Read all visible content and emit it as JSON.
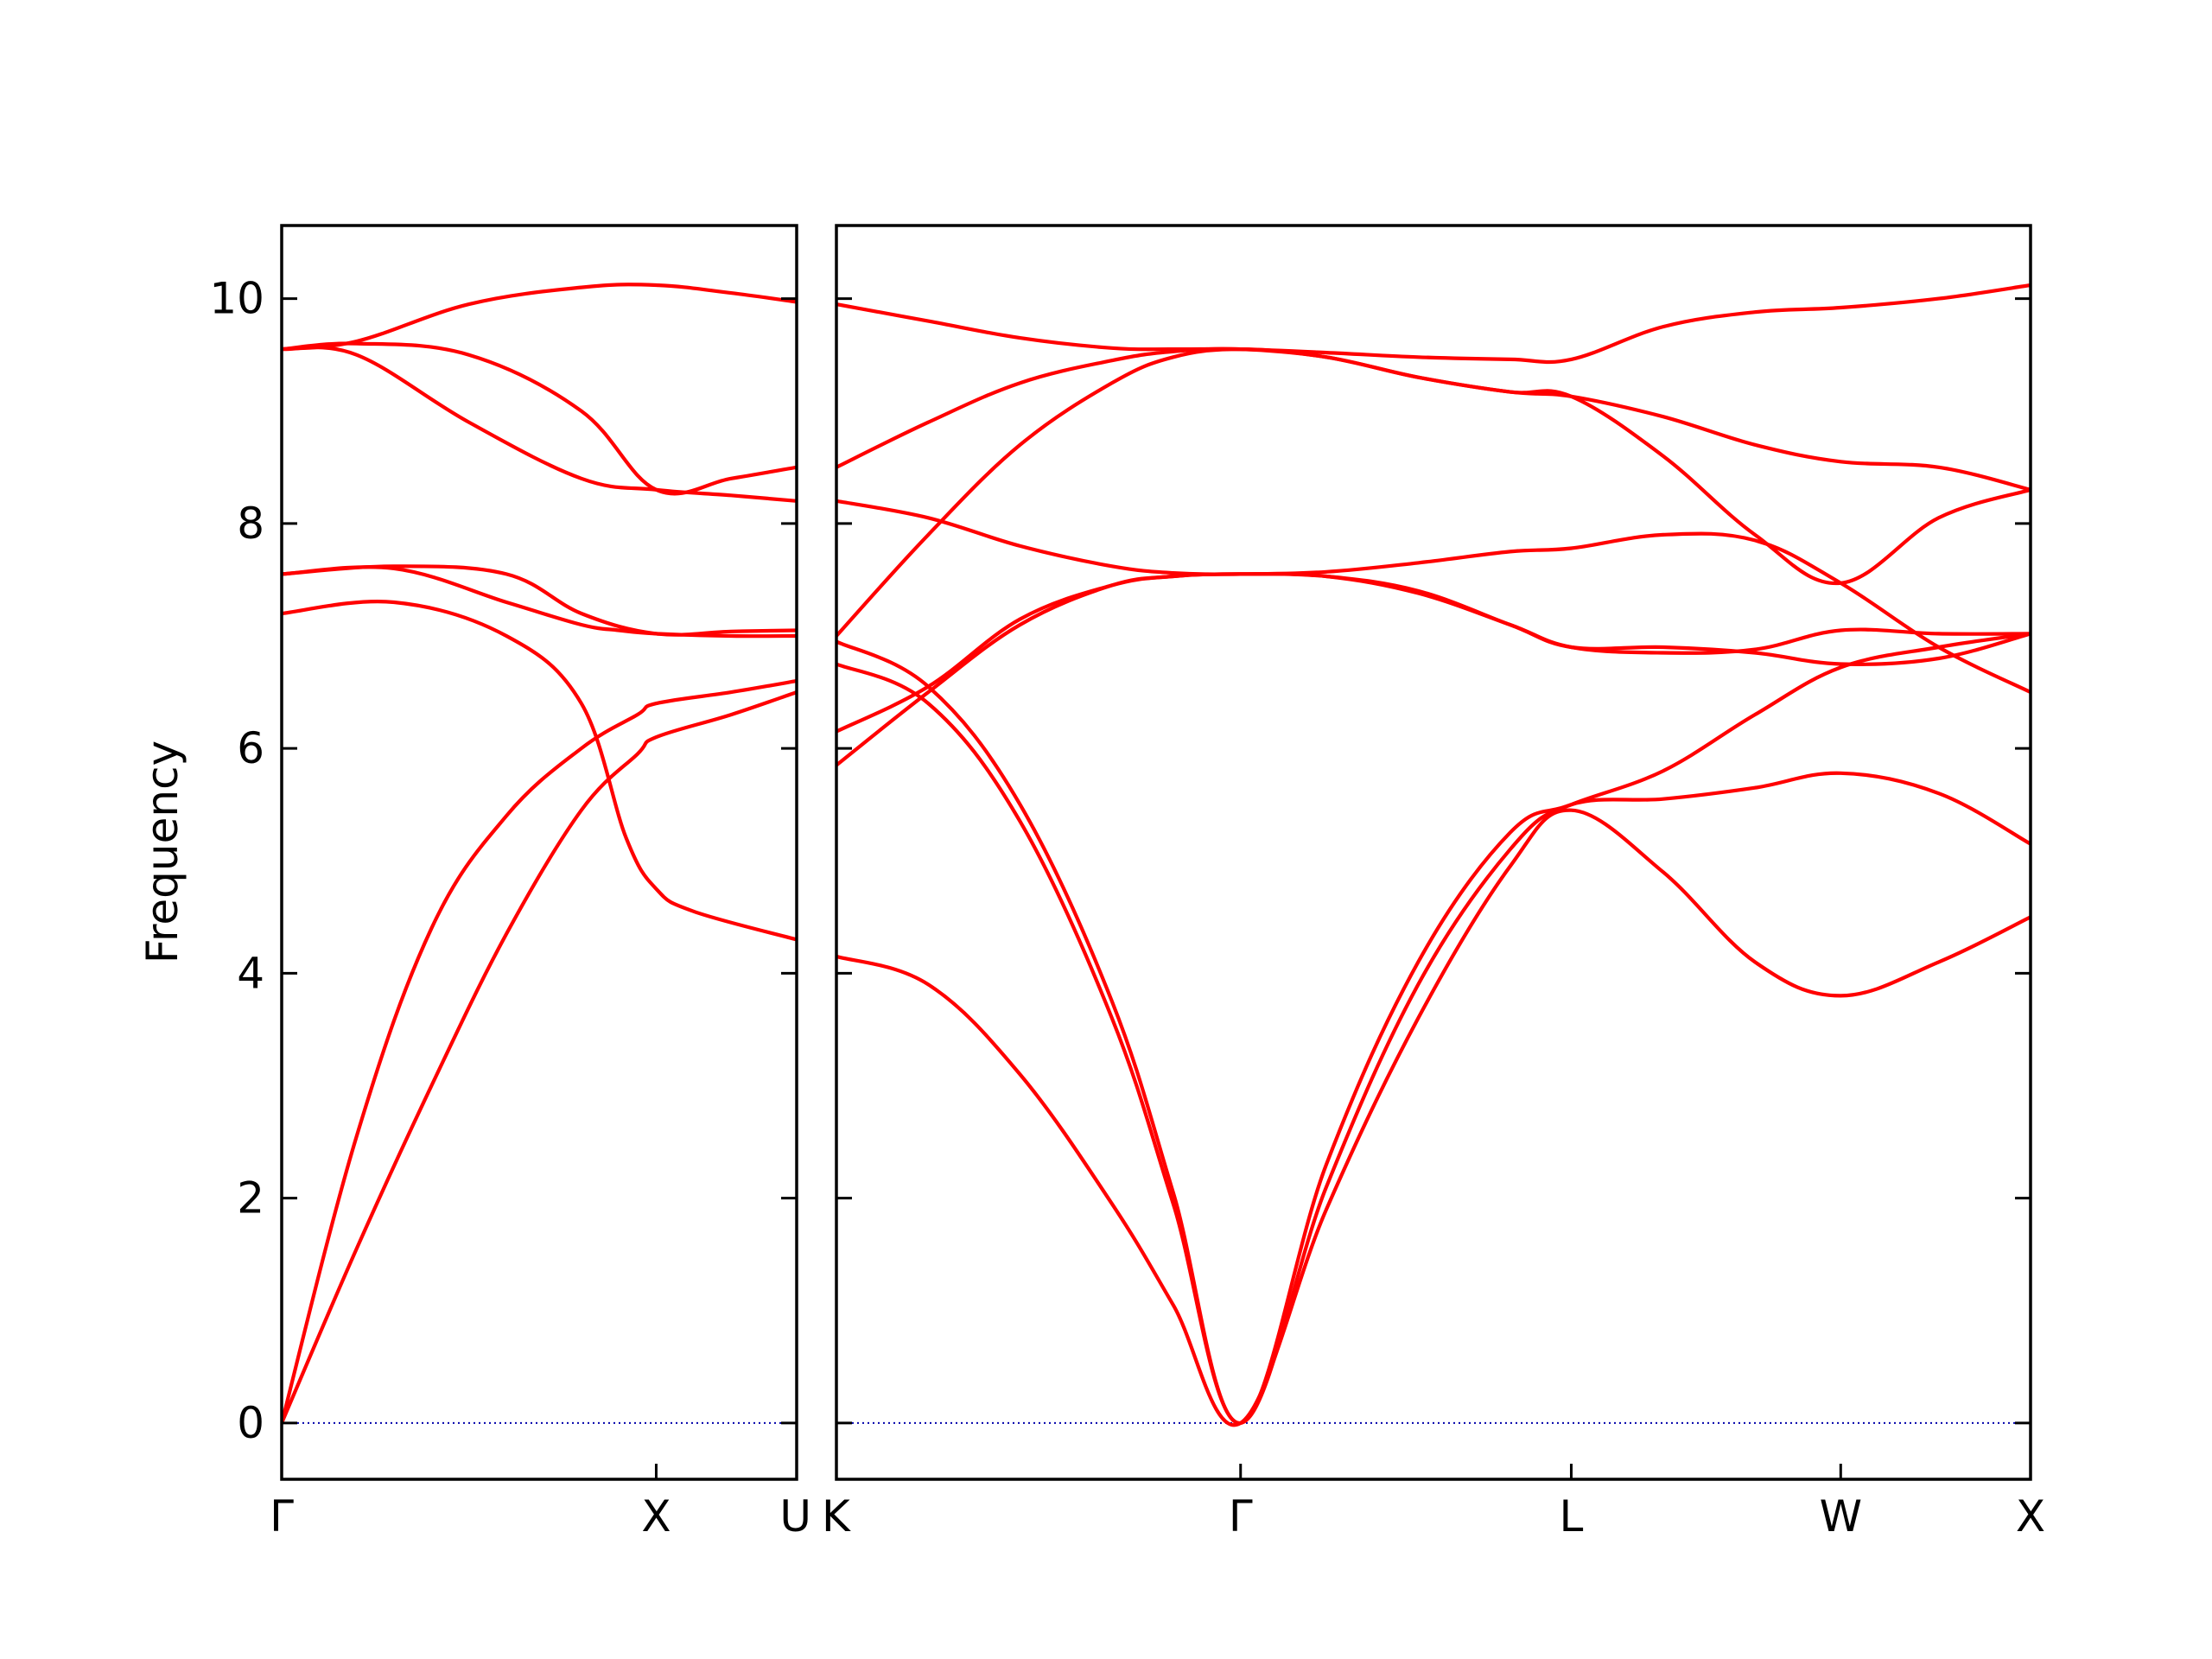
{
  "chart_data": {
    "type": "line",
    "title": "",
    "ylabel": "Frequency",
    "ylim": [
      -0.5,
      10.65
    ],
    "yticks": [
      0,
      2,
      4,
      6,
      8,
      10
    ],
    "grid": false,
    "colors": {
      "bands": "#ff0000",
      "zero_line": "#0000aa",
      "axes": "#000000"
    },
    "panels": [
      {
        "xlim": [
          0,
          1.375
        ],
        "xticks": [
          {
            "x": 0.0,
            "label": "Γ"
          },
          {
            "x": 1.0,
            "label": "X"
          },
          {
            "x": 1.375,
            "label": "U"
          }
        ],
        "series": [
          {
            "x": [
              0,
              0.2,
              0.4,
              0.6,
              0.8,
              0.95,
              1.0,
              1.2,
              1.375
            ],
            "y": [
              0,
              1.55,
              3.0,
              4.35,
              5.45,
              5.95,
              6.1,
              6.3,
              6.5
            ]
          },
          {
            "x": [
              0,
              0.2,
              0.4,
              0.6,
              0.8,
              0.95,
              1.0,
              1.2,
              1.375
            ],
            "y": [
              0,
              2.55,
              4.4,
              5.4,
              6.0,
              6.3,
              6.4,
              6.5,
              6.6
            ]
          },
          {
            "x": [
              0,
              0.3,
              0.6,
              0.8,
              0.92,
              1.0,
              1.1,
              1.375
            ],
            "y": [
              7.2,
              7.3,
              7.0,
              6.4,
              5.2,
              4.75,
              4.55,
              4.3
            ]
          },
          {
            "x": [
              0,
              0.3,
              0.6,
              0.8,
              0.9,
              1.0,
              1.2,
              1.375
            ],
            "y": [
              7.55,
              7.6,
              7.3,
              7.1,
              7.05,
              7.02,
              7.0,
              7.0
            ]
          },
          {
            "x": [
              0,
              0.3,
              0.6,
              0.8,
              1.0,
              1.2,
              1.375
            ],
            "y": [
              7.55,
              7.62,
              7.55,
              7.2,
              7.02,
              7.04,
              7.05
            ]
          },
          {
            "x": [
              0,
              0.2,
              0.5,
              0.8,
              1.0,
              1.2,
              1.375
            ],
            "y": [
              9.55,
              9.5,
              8.9,
              8.4,
              8.3,
              8.25,
              8.2
            ]
          },
          {
            "x": [
              0,
              0.2,
              0.5,
              0.8,
              1.0,
              1.2,
              1.375
            ],
            "y": [
              9.55,
              9.62,
              9.95,
              10.1,
              10.12,
              10.05,
              9.97
            ]
          },
          {
            "x": [
              0,
              0.2,
              0.5,
              0.8,
              1.0,
              1.2,
              1.375
            ],
            "y": [
              9.55,
              9.6,
              9.5,
              9.0,
              8.3,
              8.4,
              8.5
            ]
          }
        ]
      },
      {
        "xlim": [
          0,
          3.9
        ],
        "xticks": [
          {
            "x": 0.0,
            "label": "K"
          },
          {
            "x": 1.32,
            "label": "Γ"
          },
          {
            "x": 2.4,
            "label": "L"
          },
          {
            "x": 3.28,
            "label": "W"
          },
          {
            "x": 3.9,
            "label": "X"
          }
        ],
        "series": [
          {
            "x": [
              0,
              0.3,
              0.6,
              0.9,
              1.1,
              1.32,
              1.6,
              1.9,
              2.2,
              2.4,
              2.7,
              3.0,
              3.28,
              3.6,
              3.9
            ],
            "y": [
              4.15,
              3.9,
              3.1,
              1.95,
              1.05,
              0.0,
              1.9,
              3.6,
              4.95,
              5.45,
              4.9,
              4.1,
              3.8,
              4.1,
              4.5
            ]
          },
          {
            "x": [
              0,
              0.3,
              0.6,
              0.9,
              1.1,
              1.32,
              1.6,
              1.9,
              2.2,
              2.4,
              2.7,
              3.0,
              3.28,
              3.6,
              3.9
            ],
            "y": [
              6.75,
              6.4,
              5.35,
              3.6,
              1.95,
              0.0,
              2.1,
              3.9,
              5.1,
              5.5,
              5.55,
              5.65,
              5.78,
              5.6,
              5.15
            ]
          },
          {
            "x": [
              0,
              0.3,
              0.6,
              0.9,
              1.1,
              1.32,
              1.6,
              1.9,
              2.2,
              2.4,
              2.7,
              3.0,
              3.28,
              3.6,
              3.9
            ],
            "y": [
              6.95,
              6.55,
              5.5,
              3.75,
              2.05,
              0.0,
              2.3,
              4.1,
              5.25,
              5.5,
              5.8,
              6.3,
              6.72,
              6.9,
              7.02
            ]
          },
          {
            "x": [
              0,
              0.3,
              0.6,
              0.9,
              1.1,
              1.32,
              1.6,
              1.9,
              2.2,
              2.4,
              2.7,
              3.0,
              3.28,
              3.6,
              3.9
            ],
            "y": [
              5.85,
              6.5,
              7.1,
              7.45,
              7.53,
              7.55,
              7.53,
              7.4,
              7.1,
              6.9,
              6.9,
              6.85,
              6.75,
              6.8,
              7.02
            ]
          },
          {
            "x": [
              0,
              0.3,
              0.6,
              0.9,
              1.1,
              1.32,
              1.6,
              1.9,
              2.2,
              2.4,
              2.7,
              3.0,
              3.28,
              3.6,
              3.9
            ],
            "y": [
              6.15,
              6.55,
              7.15,
              7.45,
              7.53,
              7.55,
              7.53,
              7.38,
              7.1,
              6.9,
              6.85,
              6.88,
              7.05,
              7.02,
              7.02
            ]
          },
          {
            "x": [
              0,
              0.3,
              0.6,
              0.9,
              1.1,
              1.32,
              1.6,
              1.9,
              2.2,
              2.4,
              2.7,
              3.0,
              3.28,
              3.6,
              3.9
            ],
            "y": [
              8.2,
              8.05,
              7.8,
              7.62,
              7.56,
              7.55,
              7.57,
              7.65,
              7.75,
              7.78,
              7.9,
              7.85,
              7.47,
              6.9,
              6.5
            ]
          },
          {
            "x": [
              0,
              0.3,
              0.6,
              0.9,
              1.1,
              1.32,
              1.6,
              1.9,
              2.2,
              2.4,
              2.7,
              3.0,
              3.28,
              3.6,
              3.9
            ],
            "y": [
              7.0,
              7.9,
              8.7,
              9.25,
              9.48,
              9.55,
              9.48,
              9.3,
              9.17,
              9.13,
              8.6,
              7.9,
              7.47,
              8.05,
              8.3
            ]
          },
          {
            "x": [
              0,
              0.3,
              0.6,
              0.9,
              1.1,
              1.32,
              1.6,
              1.9,
              2.2,
              2.4,
              2.7,
              3.0,
              3.28,
              3.6,
              3.9
            ],
            "y": [
              8.5,
              8.9,
              9.25,
              9.45,
              9.53,
              9.55,
              9.48,
              9.3,
              9.17,
              9.13,
              8.95,
              8.7,
              8.55,
              8.5,
              8.3
            ]
          },
          {
            "x": [
              0,
              0.3,
              0.6,
              0.9,
              1.1,
              1.32,
              1.6,
              1.9,
              2.2,
              2.4,
              2.7,
              3.0,
              3.28,
              3.6,
              3.9
            ],
            "y": [
              9.95,
              9.8,
              9.65,
              9.56,
              9.55,
              9.55,
              9.52,
              9.48,
              9.46,
              9.46,
              9.75,
              9.88,
              9.92,
              10.0,
              10.12
            ]
          }
        ]
      }
    ]
  }
}
